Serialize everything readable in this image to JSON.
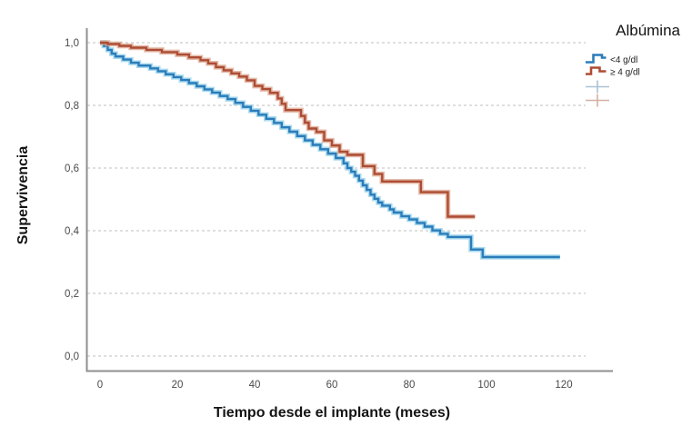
{
  "figure": {
    "y_axis_title": "Supervivencia",
    "x_axis_title": "Tiempo desde el implante (meses)",
    "y_tick_labels": [
      "1,0",
      "0,8",
      "0,6",
      "0,4",
      "0,2",
      "0,0"
    ],
    "x_tick_labels": [
      "0",
      "20",
      "40",
      "60",
      "80",
      "100",
      "120"
    ]
  },
  "legend": {
    "title": "Albúmina",
    "entries": [
      {
        "label": "<4 g/dl",
        "color": "#2b7cba",
        "halo": "#8ecde8"
      },
      {
        "label": "≥ 4 g/dl",
        "color": "#ad4c34",
        "halo": "#dba48e"
      }
    ],
    "censor_marker_colors": [
      "#a9c2d4",
      "#d6b0a2"
    ]
  },
  "chart_data": {
    "type": "line",
    "subtype": "kaplan-meier-step",
    "title": "",
    "xlabel": "Tiempo desde el implante (meses)",
    "ylabel": "Supervivencia",
    "xlim": [
      -3.5,
      126
    ],
    "ylim": [
      -0.045,
      1.05
    ],
    "x_ticks": [
      0,
      20,
      40,
      60,
      80,
      100,
      120
    ],
    "y_ticks": [
      1.0,
      0.8,
      0.6,
      0.4,
      0.2,
      0.0
    ],
    "grid": "horizontal-dashed",
    "grid_color": "#cccccc",
    "axis_color": "#8f8f8f",
    "legend_position": "outside-top-right",
    "legend_title": "Albúmina",
    "series": [
      {
        "name": "<4 g/dl",
        "color": "#2b7cba",
        "halo": "#8ecde8",
        "points": [
          [
            0,
            1.0
          ],
          [
            1,
            0.99
          ],
          [
            2,
            0.977
          ],
          [
            3,
            0.965
          ],
          [
            4,
            0.956
          ],
          [
            6,
            0.946
          ],
          [
            8,
            0.936
          ],
          [
            10,
            0.927
          ],
          [
            13,
            0.918
          ],
          [
            15,
            0.909
          ],
          [
            17,
            0.899
          ],
          [
            19,
            0.89
          ],
          [
            21,
            0.881
          ],
          [
            23,
            0.871
          ],
          [
            25,
            0.861
          ],
          [
            27,
            0.851
          ],
          [
            29,
            0.841
          ],
          [
            31,
            0.83
          ],
          [
            33,
            0.82
          ],
          [
            35,
            0.808
          ],
          [
            37,
            0.795
          ],
          [
            39,
            0.783
          ],
          [
            41,
            0.77
          ],
          [
            43,
            0.757
          ],
          [
            45,
            0.744
          ],
          [
            47,
            0.73
          ],
          [
            49,
            0.716
          ],
          [
            51,
            0.702
          ],
          [
            53,
            0.688
          ],
          [
            55,
            0.674
          ],
          [
            57,
            0.66
          ],
          [
            59,
            0.646
          ],
          [
            61,
            0.632
          ],
          [
            63,
            0.615
          ],
          [
            64,
            0.6
          ],
          [
            65,
            0.588
          ],
          [
            66,
            0.575
          ],
          [
            67,
            0.56
          ],
          [
            68,
            0.545
          ],
          [
            69,
            0.53
          ],
          [
            70,
            0.515
          ],
          [
            71,
            0.502
          ],
          [
            72,
            0.49
          ],
          [
            73,
            0.48
          ],
          [
            75,
            0.468
          ],
          [
            76,
            0.458
          ],
          [
            78,
            0.446
          ],
          [
            80,
            0.436
          ],
          [
            82,
            0.425
          ],
          [
            84,
            0.413
          ],
          [
            86,
            0.401
          ],
          [
            88,
            0.39
          ],
          [
            90,
            0.38
          ],
          [
            96,
            0.34
          ],
          [
            99,
            0.316
          ],
          [
            119,
            0.316
          ]
        ]
      },
      {
        "name": "≥ 4 g/dl",
        "color": "#ad4c34",
        "halo": "#dba48e",
        "points": [
          [
            0,
            1.0
          ],
          [
            2,
            0.996
          ],
          [
            5,
            0.99
          ],
          [
            8,
            0.984
          ],
          [
            12,
            0.977
          ],
          [
            16,
            0.97
          ],
          [
            20,
            0.962
          ],
          [
            23,
            0.953
          ],
          [
            26,
            0.944
          ],
          [
            28,
            0.934
          ],
          [
            30,
            0.922
          ],
          [
            32,
            0.912
          ],
          [
            34,
            0.902
          ],
          [
            36,
            0.892
          ],
          [
            38,
            0.88
          ],
          [
            40,
            0.862
          ],
          [
            42,
            0.852
          ],
          [
            44,
            0.84
          ],
          [
            46,
            0.822
          ],
          [
            47,
            0.805
          ],
          [
            48,
            0.785
          ],
          [
            52,
            0.766
          ],
          [
            53,
            0.745
          ],
          [
            54,
            0.726
          ],
          [
            56,
            0.715
          ],
          [
            58,
            0.688
          ],
          [
            60,
            0.672
          ],
          [
            62,
            0.652
          ],
          [
            64,
            0.642
          ],
          [
            68,
            0.606
          ],
          [
            71,
            0.581
          ],
          [
            73,
            0.557
          ],
          [
            83,
            0.523
          ],
          [
            90,
            0.445
          ],
          [
            97,
            0.445
          ]
        ]
      }
    ]
  }
}
